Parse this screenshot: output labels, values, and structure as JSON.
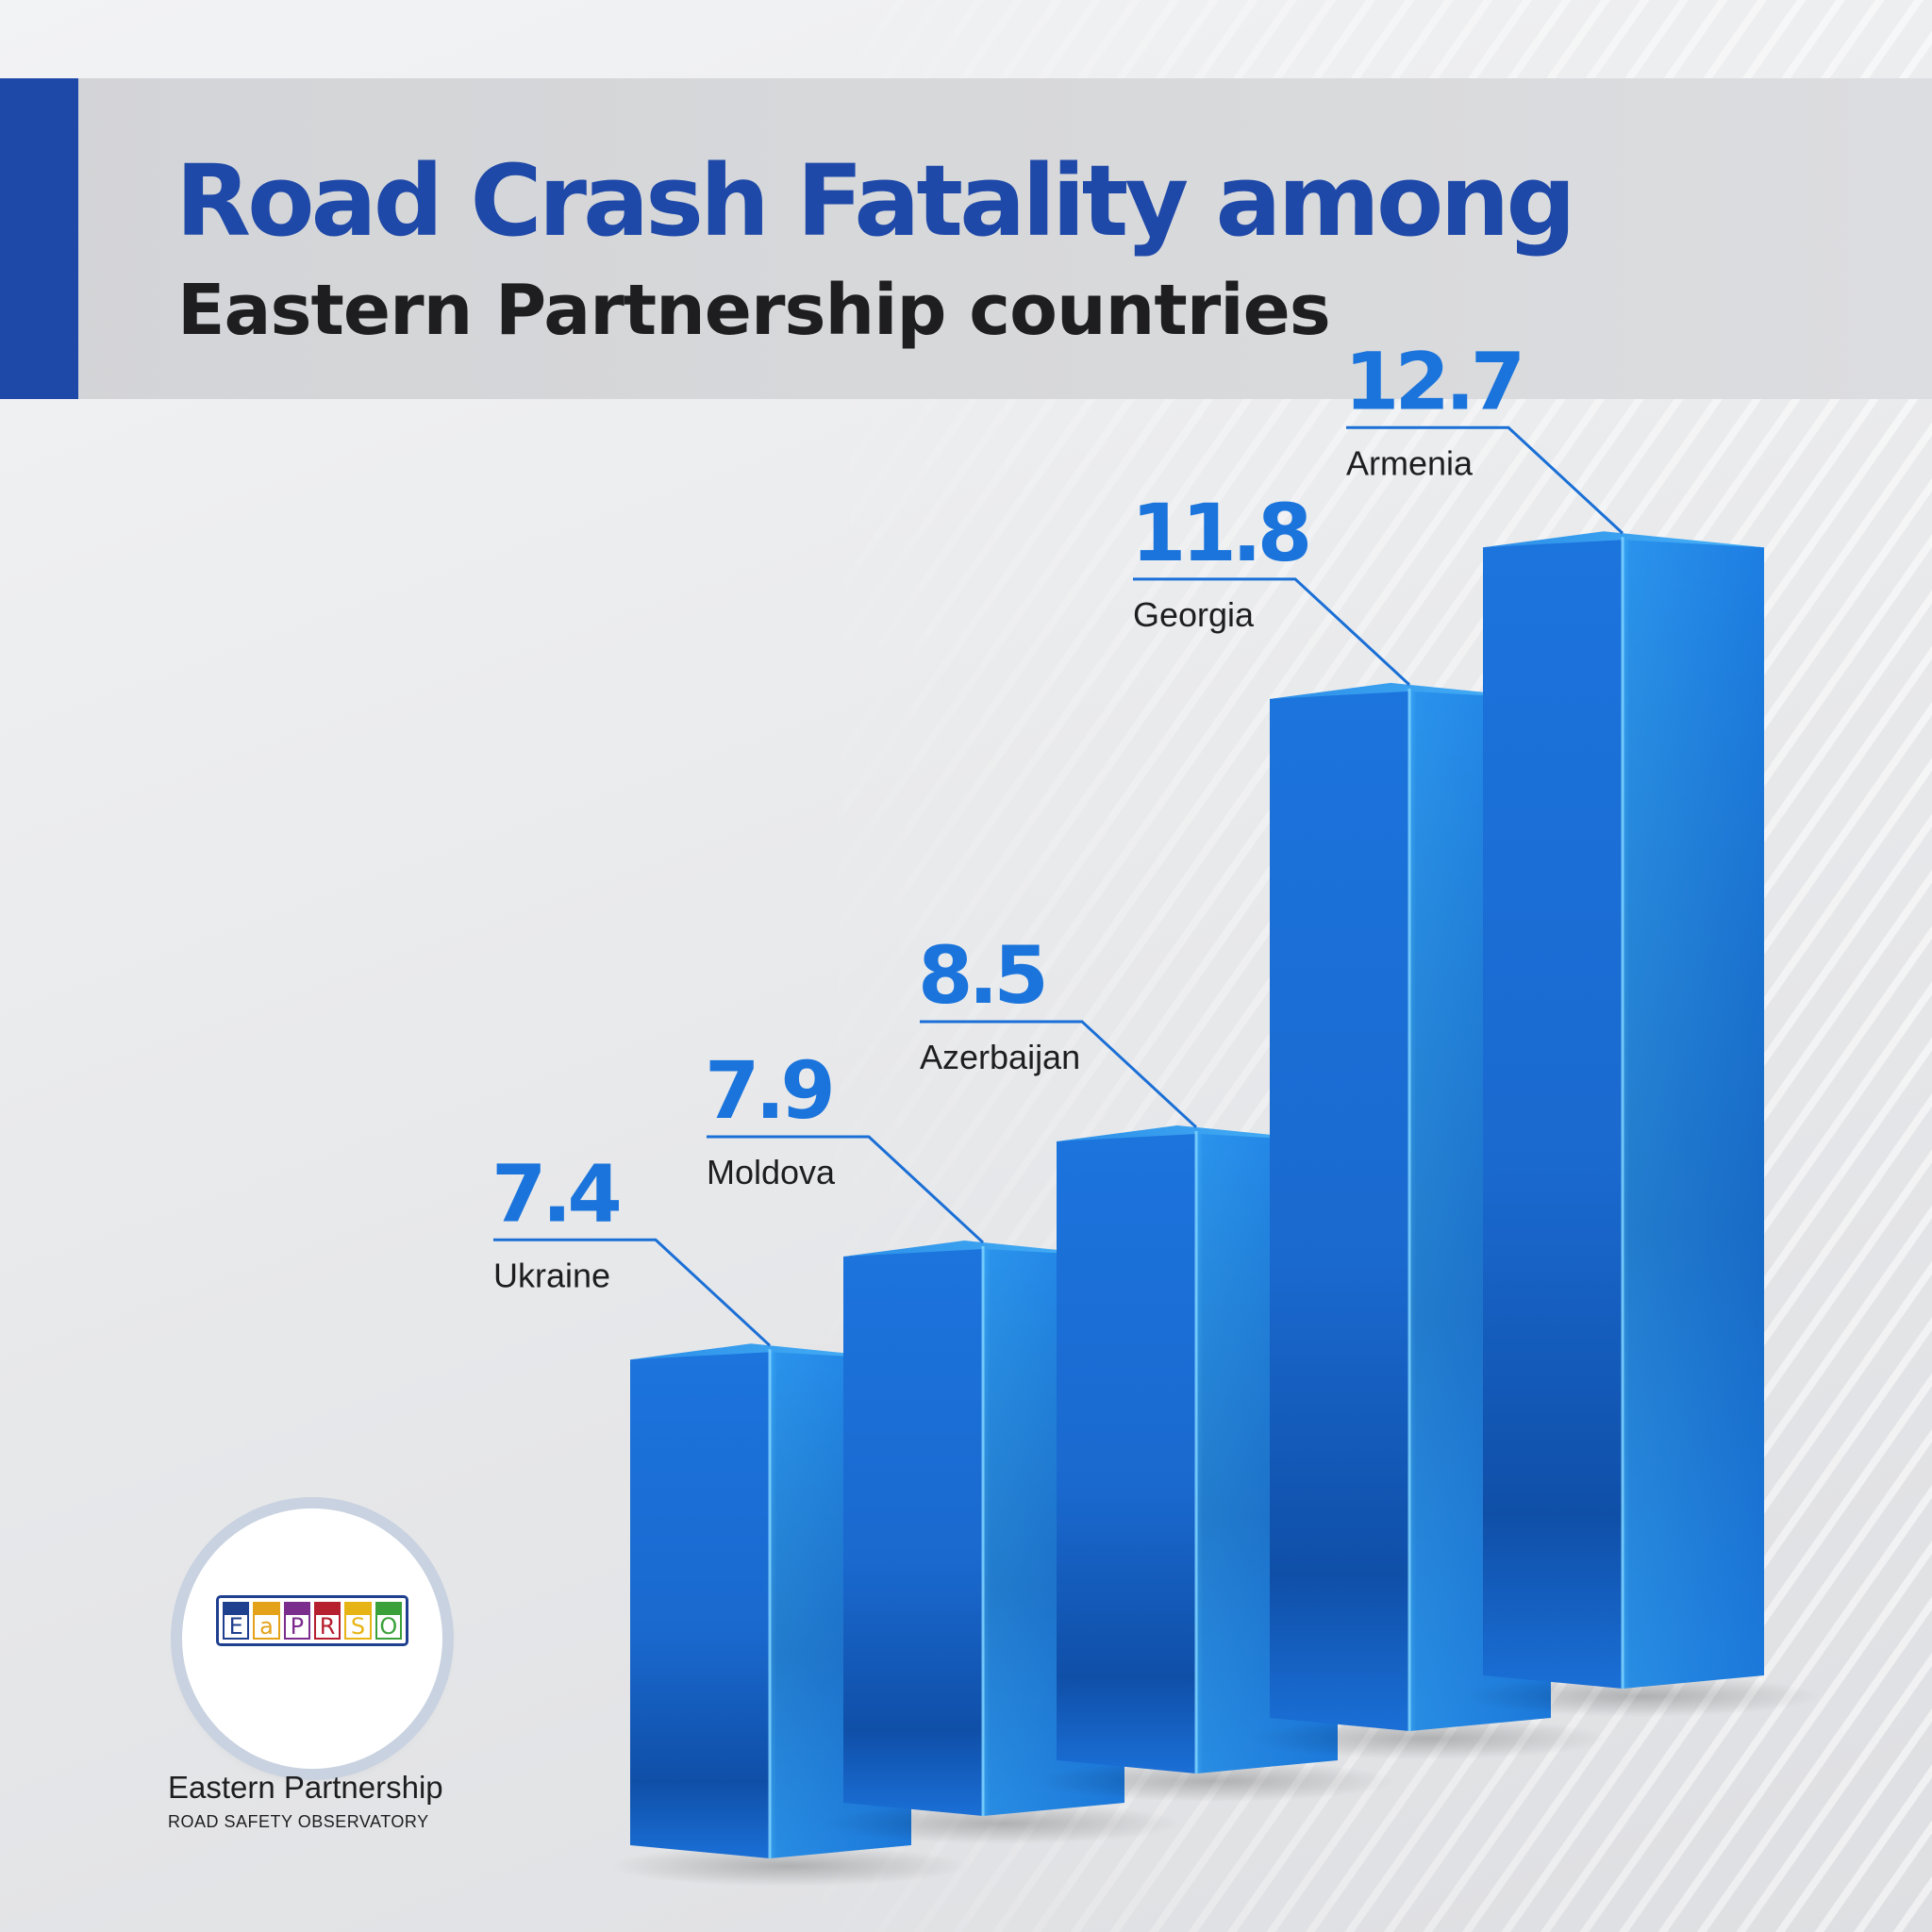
{
  "header": {
    "title": "Road Crash Fatality among",
    "subtitle": "Eastern Partnership countries"
  },
  "chart_data": {
    "type": "bar",
    "categories": [
      "Ukraine",
      "Moldova",
      "Azerbaijan",
      "Georgia",
      "Armenia"
    ],
    "values": [
      7.4,
      7.9,
      8.5,
      11.8,
      12.7
    ],
    "value_labels": [
      "7.4",
      "7.9",
      "8.5",
      "11.8",
      "12.7"
    ],
    "title": "Road Crash Fatality among",
    "subtitle": "Eastern Partnership countries",
    "xlabel": "",
    "ylabel": "",
    "grid": false,
    "legend": "none",
    "colors": {
      "bar_front": "#1a6fd6",
      "bar_side": "#1256b0",
      "bar_top": "#2d9bf0",
      "value_text": "#1a74dc",
      "leader_line": "#1a6fd6"
    }
  },
  "logo": {
    "letters": [
      "E",
      "a",
      "P",
      "R",
      "S",
      "O"
    ],
    "letter_colors": [
      "#1f3f8f",
      "#e3a21a",
      "#7b2d8e",
      "#b51f2e",
      "#e7b416",
      "#3aa13a"
    ],
    "name": "Eastern Partnership",
    "subtitle": "ROAD SAFETY OBSERVATORY"
  }
}
